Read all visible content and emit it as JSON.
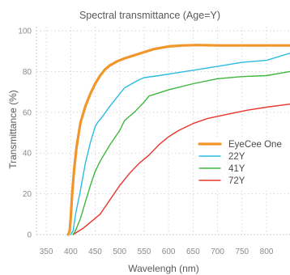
{
  "chart_data": {
    "type": "line",
    "title": "Spectral transmittance (Age=Y)",
    "xlabel": "Wavelengh (nm)",
    "ylabel": "Transmittance (%)",
    "xlim": [
      330,
      848
    ],
    "ylim": [
      0,
      102
    ],
    "x_ticks": [
      350,
      400,
      450,
      500,
      550,
      600,
      650,
      700,
      750,
      800
    ],
    "y_ticks": [
      0,
      20,
      40,
      60,
      80,
      100
    ],
    "grid": "dotted",
    "legend_position": "right",
    "series": [
      {
        "name": "EyeCee One",
        "color": "#f0962a",
        "points": [
          [
            395,
            0
          ],
          [
            398,
            2
          ],
          [
            400,
            8
          ],
          [
            403,
            20
          ],
          [
            407,
            32
          ],
          [
            412,
            43
          ],
          [
            420,
            55
          ],
          [
            430,
            63
          ],
          [
            440,
            69
          ],
          [
            450,
            74
          ],
          [
            460,
            78
          ],
          [
            470,
            81
          ],
          [
            480,
            83
          ],
          [
            495,
            85
          ],
          [
            510,
            86.5
          ],
          [
            530,
            88
          ],
          [
            550,
            89.5
          ],
          [
            570,
            91
          ],
          [
            600,
            92.3
          ],
          [
            630,
            92.8
          ],
          [
            660,
            93
          ],
          [
            700,
            92.8
          ],
          [
            750,
            92.8
          ],
          [
            800,
            92.8
          ],
          [
            848,
            92.8
          ]
        ]
      },
      {
        "name": "22Y",
        "color": "#2bbde0",
        "points": [
          [
            400,
            0
          ],
          [
            405,
            2
          ],
          [
            410,
            10
          ],
          [
            420,
            22
          ],
          [
            430,
            35
          ],
          [
            440,
            45
          ],
          [
            450,
            53
          ],
          [
            455,
            55
          ],
          [
            465,
            58
          ],
          [
            480,
            63
          ],
          [
            500,
            69
          ],
          [
            510,
            72
          ],
          [
            525,
            74
          ],
          [
            540,
            76
          ],
          [
            550,
            77
          ],
          [
            580,
            78
          ],
          [
            620,
            79.5
          ],
          [
            660,
            81
          ],
          [
            700,
            82.5
          ],
          [
            750,
            84.5
          ],
          [
            800,
            85.5
          ],
          [
            848,
            89
          ]
        ]
      },
      {
        "name": "41Y",
        "color": "#3db83d",
        "points": [
          [
            405,
            0
          ],
          [
            410,
            2
          ],
          [
            420,
            8
          ],
          [
            430,
            16
          ],
          [
            440,
            24
          ],
          [
            450,
            31
          ],
          [
            460,
            36
          ],
          [
            480,
            44
          ],
          [
            500,
            51
          ],
          [
            510,
            56
          ],
          [
            530,
            60
          ],
          [
            550,
            65
          ],
          [
            560,
            68
          ],
          [
            600,
            71
          ],
          [
            650,
            74
          ],
          [
            700,
            76.5
          ],
          [
            750,
            77.5
          ],
          [
            800,
            78
          ],
          [
            848,
            80
          ]
        ]
      },
      {
        "name": "72Y",
        "color": "#e8362e",
        "points": [
          [
            405,
            0
          ],
          [
            425,
            3
          ],
          [
            445,
            7
          ],
          [
            460,
            10
          ],
          [
            480,
            17
          ],
          [
            500,
            24
          ],
          [
            520,
            30
          ],
          [
            540,
            35
          ],
          [
            560,
            39
          ],
          [
            580,
            44
          ],
          [
            600,
            48
          ],
          [
            620,
            51
          ],
          [
            650,
            54.5
          ],
          [
            680,
            57
          ],
          [
            720,
            59
          ],
          [
            760,
            61
          ],
          [
            800,
            62.5
          ],
          [
            848,
            64
          ]
        ]
      }
    ]
  }
}
